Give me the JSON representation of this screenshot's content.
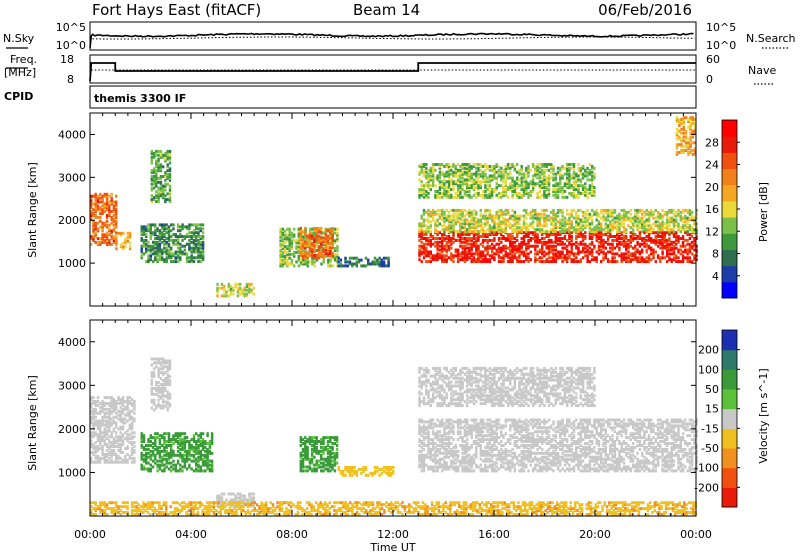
{
  "header": {
    "site": "Fort Hays East (fitACF)",
    "beam": "Beam 14",
    "date": "06/Feb/2016"
  },
  "noise_panel": {
    "left_label": "N.Sky",
    "right_label": "N.Search",
    "left_ticks": [
      "10^5",
      "10^0"
    ],
    "right_ticks": [
      "10^5",
      "10^0"
    ]
  },
  "freq_panel": {
    "left_label_line1": "Freq.",
    "left_label_line2": "[MHz]",
    "right_label": "Nave",
    "left_ticks": [
      "18",
      "8"
    ],
    "right_ticks": [
      "60",
      "0"
    ]
  },
  "cpid": {
    "label": "CPID",
    "value": "themis 3300 IF"
  },
  "colors": {
    "power": [
      "#0000ff",
      "#1c3ca8",
      "#2e6e4e",
      "#3c9a3c",
      "#7cc04a",
      "#e9d93a",
      "#f5a623",
      "#f0801a",
      "#ee5010",
      "#e81a0a",
      "#ff0000"
    ],
    "velocity": [
      "#1b2fb0",
      "#2e7a6a",
      "#3a9a3a",
      "#5cc23c",
      "#c8c8c8",
      "#f0c020",
      "#f09020",
      "#f05010",
      "#e81a0a"
    ]
  },
  "chart_data": [
    {
      "type": "heatmap",
      "title": "",
      "ylabel": "Slant Range [km]",
      "ylim": [
        0,
        4500
      ],
      "y_ticks": [
        "1000",
        "2000",
        "3000",
        "4000"
      ],
      "x_ticks": [
        "00:00",
        "04:00",
        "08:00",
        "12:00",
        "16:00",
        "20:00",
        "00:00"
      ],
      "xlim_hours": [
        0,
        24
      ],
      "colorbar": {
        "label": "Power [dB]",
        "ticks": [
          "4",
          "8",
          "12",
          "16",
          "20",
          "24",
          "28"
        ],
        "range": [
          0,
          30
        ]
      },
      "echo_regions": [
        {
          "t": [
            0.0,
            1.0
          ],
          "r": [
            1400,
            2600
          ],
          "level": 22
        },
        {
          "t": [
            1.0,
            1.6
          ],
          "r": [
            1300,
            1700
          ],
          "level": 18
        },
        {
          "t": [
            2.0,
            4.5
          ],
          "r": [
            1000,
            1900
          ],
          "level": 8
        },
        {
          "t": [
            2.4,
            3.2
          ],
          "r": [
            2400,
            3600
          ],
          "level": 10
        },
        {
          "t": [
            5.0,
            6.5
          ],
          "r": [
            200,
            500
          ],
          "level": 14
        },
        {
          "t": [
            7.5,
            9.8
          ],
          "r": [
            900,
            1800
          ],
          "level": 12
        },
        {
          "t": [
            8.3,
            9.6
          ],
          "r": [
            1100,
            1800
          ],
          "level": 22
        },
        {
          "t": [
            9.8,
            11.8
          ],
          "r": [
            900,
            1100
          ],
          "level": 6
        },
        {
          "t": [
            13.0,
            24.0
          ],
          "r": [
            1000,
            1700
          ],
          "level": 27
        },
        {
          "t": [
            13.0,
            24.0
          ],
          "r": [
            1700,
            2200
          ],
          "level": 14
        },
        {
          "t": [
            13.0,
            20.0
          ],
          "r": [
            2500,
            3300
          ],
          "level": 12
        },
        {
          "t": [
            23.2,
            24.0
          ],
          "r": [
            3500,
            4400
          ],
          "level": 18
        }
      ]
    },
    {
      "type": "heatmap",
      "title": "",
      "ylabel": "Slant Range [km]",
      "ylim": [
        0,
        4500
      ],
      "y_ticks": [
        "1000",
        "2000",
        "3000",
        "4000"
      ],
      "x_ticks": [
        "00:00",
        "04:00",
        "08:00",
        "12:00",
        "16:00",
        "20:00",
        "00:00"
      ],
      "xlabel": "Time UT",
      "xlim_hours": [
        0,
        24
      ],
      "colorbar": {
        "label": "Velocity [m s^-1]",
        "ticks": [
          "200",
          "100",
          "50",
          "15",
          "-15",
          "-50",
          "-100",
          "-200"
        ],
        "range": [
          -250,
          250
        ]
      },
      "echo_regions": [
        {
          "t": [
            0.0,
            1.8
          ],
          "r": [
            1200,
            2700
          ],
          "velocity": 0
        },
        {
          "t": [
            2.0,
            4.8
          ],
          "r": [
            1000,
            1900
          ],
          "velocity": 40
        },
        {
          "t": [
            2.4,
            3.2
          ],
          "r": [
            2400,
            3600
          ],
          "velocity": 0
        },
        {
          "t": [
            5.0,
            6.5
          ],
          "r": [
            200,
            500
          ],
          "velocity": 0
        },
        {
          "t": [
            8.3,
            9.8
          ],
          "r": [
            1000,
            1800
          ],
          "velocity": 40
        },
        {
          "t": [
            9.8,
            12.0
          ],
          "r": [
            900,
            1100
          ],
          "velocity": -30
        },
        {
          "t": [
            13.0,
            24.0
          ],
          "r": [
            1000,
            2200
          ],
          "velocity": 0
        },
        {
          "t": [
            13.0,
            20.0
          ],
          "r": [
            2500,
            3400
          ],
          "velocity": 0
        },
        {
          "t": [
            0.0,
            24.0
          ],
          "r": [
            0,
            300
          ],
          "velocity": -40
        }
      ]
    }
  ]
}
